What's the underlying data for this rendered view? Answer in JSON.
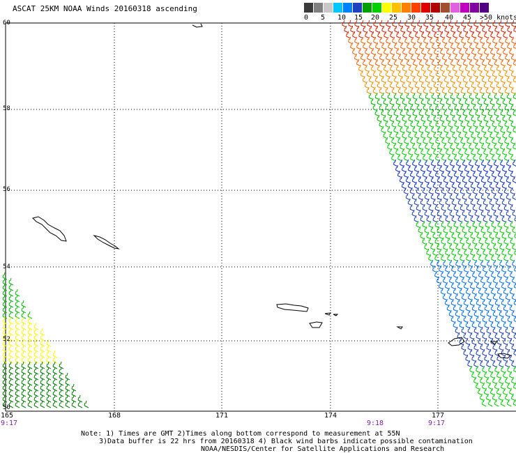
{
  "title": "ASCAT 25KM NOAA Winds 20160318 ascending",
  "legend": {
    "labels": [
      "0",
      "5",
      "10",
      "15",
      "20",
      "25",
      "30",
      "35",
      "40",
      "45",
      ">50 knots"
    ],
    "colors": [
      "#3a3a3a",
      "#808080",
      "#c8c8c8",
      "#00c8ff",
      "#0080ff",
      "#2040c0",
      "#00a000",
      "#00d000",
      "#ffff00",
      "#ffc000",
      "#ff8000",
      "#ff4000",
      "#e00000",
      "#b00000",
      "#a05030",
      "#e060e0",
      "#c000c0",
      "#8000a0",
      "#500080"
    ]
  },
  "axes": {
    "lat_labels": [
      "60",
      "58",
      "56",
      "54",
      "52",
      "50"
    ],
    "lon_labels": [
      "165",
      "168",
      "171",
      "174",
      "177"
    ]
  },
  "times": [
    "9:17",
    "9:18",
    "9:17"
  ],
  "notes": {
    "line1": "Note: 1) Times are GMT 2)Times along bottom correspond to measurement at 55N",
    "line2": "3)Data buffer is 22 hrs from 20160318 4) Black wind barbs indicate possible contamination",
    "line3": "NOAA/NESDIS/Center for Satellite Applications and Research"
  }
}
